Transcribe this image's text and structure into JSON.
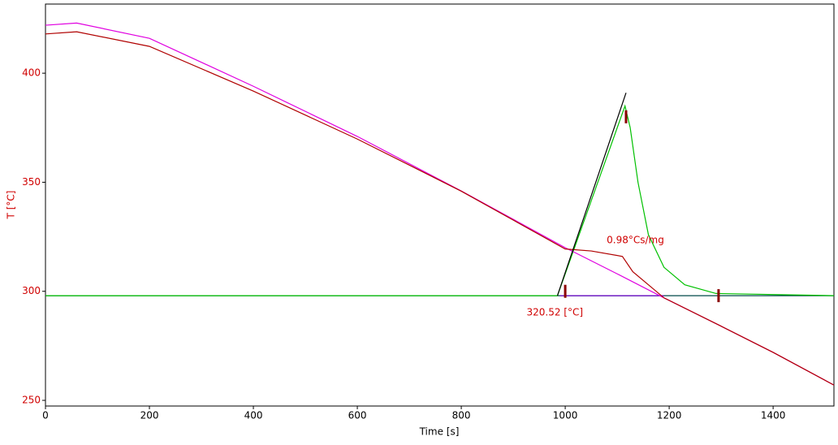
{
  "chart_data": {
    "type": "line",
    "xlabel": "Time [s]",
    "ylabel": "T  [°C]",
    "xlim": [
      0,
      1517
    ],
    "ylim": [
      247.4,
      431.7
    ],
    "xticks": [
      0,
      200,
      400,
      600,
      800,
      1000,
      1200,
      1400
    ],
    "yticks": [
      250,
      300,
      350,
      400
    ],
    "series": [
      {
        "color": "#004848",
        "x": [
          0,
          1517
        ],
        "values": [
          298,
          298
        ]
      },
      {
        "color": "#6a00c8",
        "x": [
          990,
          1190
        ],
        "values": [
          298,
          298
        ]
      },
      {
        "color": "#00c000",
        "x": [
          0,
          985,
          1115,
          1125,
          1140,
          1160,
          1190,
          1230,
          1290,
          1517
        ],
        "values": [
          298,
          298,
          385,
          375,
          350,
          326,
          311,
          303,
          299,
          298
        ]
      },
      {
        "color": "#e000e0",
        "x": [
          0,
          60,
          200,
          400,
          600,
          800,
          1000,
          1100,
          1190,
          1300,
          1400,
          1517
        ],
        "values": [
          422,
          423,
          416,
          394,
          371,
          346,
          320,
          308,
          297,
          284,
          272,
          257
        ]
      },
      {
        "color": "#b00000",
        "x": [
          0,
          60,
          200,
          400,
          600,
          800,
          1000,
          1050,
          1110,
          1130,
          1160,
          1190,
          1300,
          1400,
          1517
        ],
        "values": [
          418,
          419,
          412.3,
          391.8,
          369.8,
          345.9,
          319.4,
          318.5,
          316,
          309,
          303,
          297,
          284,
          272,
          257
        ]
      },
      {
        "color": "#000000",
        "x": [
          985,
          1117
        ],
        "values": [
          298,
          391
        ]
      }
    ],
    "markers": {
      "color": "#8b0000",
      "x": [
        1000,
        1117,
        1295
      ],
      "values": [
        300,
        380,
        298
      ]
    },
    "annotations": [
      {
        "text": "320.52 [°C]",
        "x": 980,
        "y": 294
      },
      {
        "text": "0.98°Cs/mg",
        "x": 1135,
        "y": 327
      }
    ]
  }
}
